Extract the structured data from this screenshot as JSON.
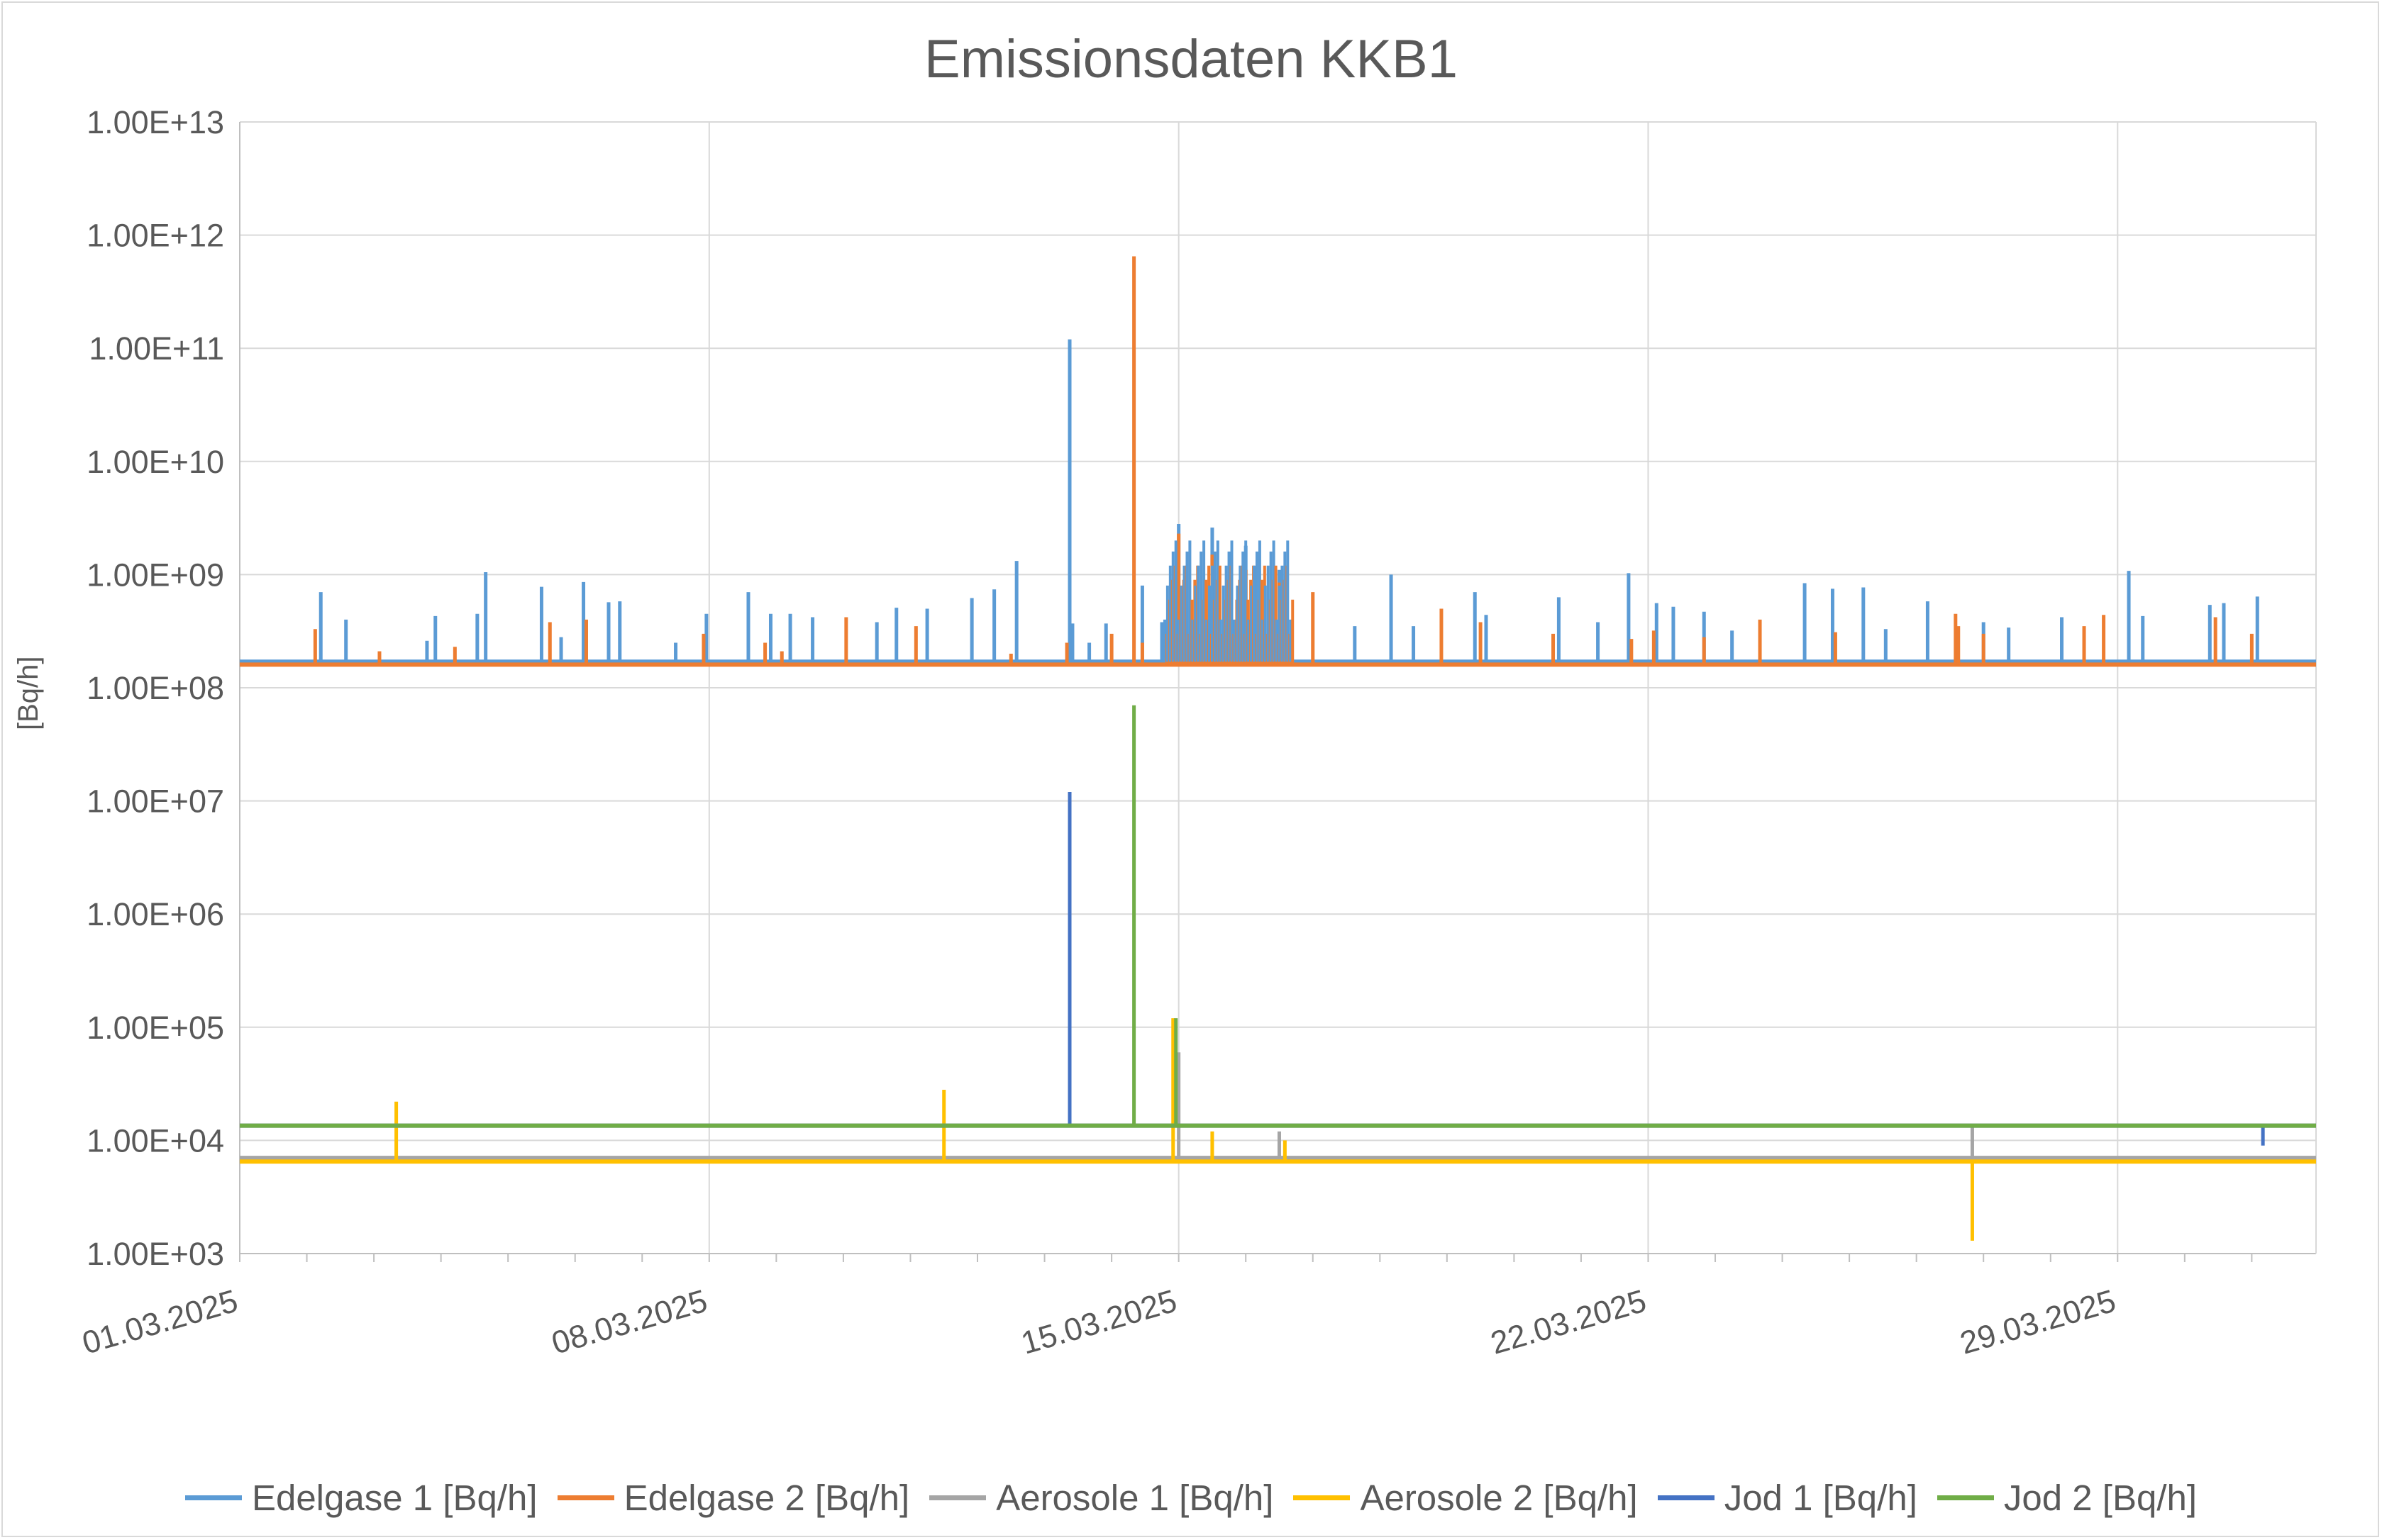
{
  "chart_data": {
    "type": "line",
    "title": "Emissionsdaten KKB1",
    "ylabel": "[Bq/h]",
    "xlabel": "",
    "y_scale": "log",
    "ylim": [
      1000,
      10000000000000
    ],
    "y_ticks": [
      "1.00E+03",
      "1.00E+04",
      "1.00E+05",
      "1.00E+06",
      "1.00E+07",
      "1.00E+08",
      "1.00E+09",
      "1.00E+10",
      "1.00E+11",
      "1.00E+12",
      "1.00E+13"
    ],
    "x_range": [
      "2025-03-01",
      "2025-03-31"
    ],
    "x_ticks": [
      "01.03.2025",
      "08.03.2025",
      "15.03.2025",
      "22.03.2025",
      "29.03.2025"
    ],
    "grid": true,
    "legend_position": "bottom",
    "series": [
      {
        "name": "Edelgase 1 [Bq/h]",
        "color": "#5b9bd5",
        "baseline": 170000000,
        "points": [
          [
            "2025-03-02T05:00",
            700000000
          ],
          [
            "2025-03-02T14:00",
            400000000
          ],
          [
            "2025-03-03T19:00",
            260000000
          ],
          [
            "2025-03-03T22:00",
            430000000
          ],
          [
            "2025-03-04T13:00",
            450000000
          ],
          [
            "2025-03-04T16:00",
            1050000000
          ],
          [
            "2025-03-05T12:00",
            780000000
          ],
          [
            "2025-03-05T19:00",
            280000000
          ],
          [
            "2025-03-06T03:00",
            860000000
          ],
          [
            "2025-03-06T12:00",
            570000000
          ],
          [
            "2025-03-06T16:00",
            580000000
          ],
          [
            "2025-03-07T12:00",
            250000000
          ],
          [
            "2025-03-07T23:00",
            450000000
          ],
          [
            "2025-03-08T14:00",
            700000000
          ],
          [
            "2025-03-08T22:00",
            450000000
          ],
          [
            "2025-03-09T05:00",
            450000000
          ],
          [
            "2025-03-09T13:00",
            420000000
          ],
          [
            "2025-03-10T12:00",
            380000000
          ],
          [
            "2025-03-10T19:00",
            510000000
          ],
          [
            "2025-03-11T06:00",
            500000000
          ],
          [
            "2025-03-11T22:00",
            620000000
          ],
          [
            "2025-03-12T06:00",
            740000000
          ],
          [
            "2025-03-12T14:00",
            1320000000
          ],
          [
            "2025-03-13T10:00",
            370000000
          ],
          [
            "2025-03-13T16:00",
            250000000
          ],
          [
            "2025-03-13T09:00",
            120000000000
          ],
          [
            "2025-03-13T22:00",
            370000000
          ],
          [
            "2025-03-14T11:00",
            800000000
          ],
          [
            "2025-03-14T18:00",
            380000000
          ],
          [
            "2025-03-14T20:00",
            400000000
          ],
          [
            "2025-03-15T00:00",
            2800000000
          ],
          [
            "2025-03-15T12:00",
            2600000000
          ],
          [
            "2025-03-16T00:00",
            1800000000
          ],
          [
            "2025-03-16T12:00",
            1100000000
          ],
          [
            "2025-03-17T15:00",
            350000000
          ],
          [
            "2025-03-18T04:00",
            1000000000
          ],
          [
            "2025-03-18T12:00",
            350000000
          ],
          [
            "2025-03-19T10:00",
            700000000
          ],
          [
            "2025-03-19T14:00",
            440000000
          ],
          [
            "2025-03-20T16:00",
            630000000
          ],
          [
            "2025-03-21T06:00",
            380000000
          ],
          [
            "2025-03-21T17:00",
            1030000000
          ],
          [
            "2025-03-22T03:00",
            560000000
          ],
          [
            "2025-03-22T09:00",
            520000000
          ],
          [
            "2025-03-22T20:00",
            470000000
          ],
          [
            "2025-03-23T06:00",
            320000000
          ],
          [
            "2025-03-24T08:00",
            840000000
          ],
          [
            "2025-03-24T18:00",
            750000000
          ],
          [
            "2025-03-25T05:00",
            770000000
          ],
          [
            "2025-03-25T13:00",
            330000000
          ],
          [
            "2025-03-26T04:00",
            580000000
          ],
          [
            "2025-03-27T00:00",
            380000000
          ],
          [
            "2025-03-27T09:00",
            340000000
          ],
          [
            "2025-03-28T04:00",
            420000000
          ],
          [
            "2025-03-29T04:00",
            1080000000
          ],
          [
            "2025-03-29T09:00",
            430000000
          ],
          [
            "2025-03-30T09:00",
            540000000
          ],
          [
            "2025-03-30T14:00",
            560000000
          ],
          [
            "2025-03-31T02:00",
            640000000
          ]
        ]
      },
      {
        "name": "Edelgase 2 [Bq/h]",
        "color": "#ed7d31",
        "baseline": 160000000,
        "points": [
          [
            "2025-03-02T03:00",
            330000000
          ],
          [
            "2025-03-03T02:00",
            210000000
          ],
          [
            "2025-03-04T05:00",
            230000000
          ],
          [
            "2025-03-05T15:00",
            380000000
          ],
          [
            "2025-03-06T04:00",
            400000000
          ],
          [
            "2025-03-07T22:00",
            300000000
          ],
          [
            "2025-03-08T20:00",
            250000000
          ],
          [
            "2025-03-09T02:00",
            210000000
          ],
          [
            "2025-03-10T01:00",
            420000000
          ],
          [
            "2025-03-11T02:00",
            350000000
          ],
          [
            "2025-03-12T12:00",
            200000000
          ],
          [
            "2025-03-13T08:00",
            250000000
          ],
          [
            "2025-03-14T00:00",
            300000000
          ],
          [
            "2025-03-14T08:00",
            650000000000
          ],
          [
            "2025-03-14T11:00",
            250000000
          ],
          [
            "2025-03-15T00:00",
            2300000000
          ],
          [
            "2025-03-15T12:00",
            1500000000
          ],
          [
            "2025-03-16T00:00",
            1100000000
          ],
          [
            "2025-03-16T12:00",
            850000000
          ],
          [
            "2025-03-17T00:00",
            700000000
          ],
          [
            "2025-03-18T22:00",
            500000000
          ],
          [
            "2025-03-19T12:00",
            380000000
          ],
          [
            "2025-03-20T14:00",
            300000000
          ],
          [
            "2025-03-21T18:00",
            270000000
          ],
          [
            "2025-03-22T02:00",
            320000000
          ],
          [
            "2025-03-22T20:00",
            280000000
          ],
          [
            "2025-03-23T16:00",
            400000000
          ],
          [
            "2025-03-24T19:00",
            310000000
          ],
          [
            "2025-03-26T14:00",
            450000000
          ],
          [
            "2025-03-26T15:00",
            350000000
          ],
          [
            "2025-03-27T00:00",
            300000000
          ],
          [
            "2025-03-28T12:00",
            350000000
          ],
          [
            "2025-03-28T19:00",
            440000000
          ],
          [
            "2025-03-30T11:00",
            420000000
          ],
          [
            "2025-03-31T00:00",
            300000000
          ]
        ]
      },
      {
        "name": "Aerosole 1 [Bq/h]",
        "color": "#a5a5a5",
        "baseline": 7000,
        "points": [
          [
            "2025-03-15T00:00",
            60000
          ],
          [
            "2025-03-16T12:00",
            12000
          ],
          [
            "2025-03-26T20:00",
            13000
          ]
        ]
      },
      {
        "name": "Aerosole 2 [Bq/h]",
        "color": "#ffc000",
        "baseline": 6500,
        "points": [
          [
            "2025-03-03T08:00",
            22000
          ],
          [
            "2025-03-11T12:00",
            28000
          ],
          [
            "2025-03-14T22:00",
            120000
          ],
          [
            "2025-03-15T12:00",
            12000
          ],
          [
            "2025-03-16T14:00",
            10000
          ],
          [
            "2025-03-26T20:00",
            1300
          ]
        ]
      },
      {
        "name": "Jod 1 [Bq/h]",
        "color": "#4472c4",
        "baseline": 13500,
        "points": [
          [
            "2025-03-13T09:00",
            12000000
          ],
          [
            "2025-03-31T04:00",
            9000
          ]
        ]
      },
      {
        "name": "Jod 2 [Bq/h]",
        "color": "#70ad47",
        "baseline": 13500,
        "points": [
          [
            "2025-03-14T08:00",
            70000000
          ],
          [
            "2025-03-14T23:00",
            120000
          ]
        ]
      }
    ]
  }
}
